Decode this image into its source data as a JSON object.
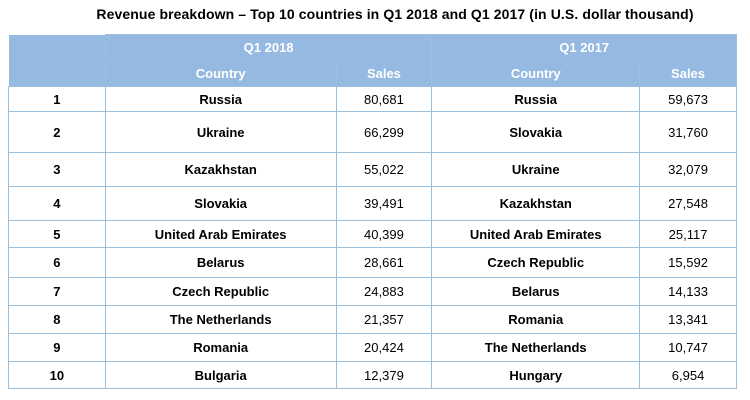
{
  "title": "Revenue breakdown – Top 10 countries in Q1 2018 and Q1 2017 (in U.S. dollar thousand)",
  "table": {
    "group_headers": [
      "Q1 2018",
      "Q1 2017"
    ],
    "sub_headers": [
      "Country",
      "Sales",
      "Country",
      "Sales"
    ],
    "rows": [
      {
        "rank": "1",
        "c2018": "Russia",
        "s2018": "80,681",
        "c2017": "Russia",
        "s2017": "59,673"
      },
      {
        "rank": "2",
        "c2018": "Ukraine",
        "s2018": "66,299",
        "c2017": "Slovakia",
        "s2017": "31,760"
      },
      {
        "rank": "3",
        "c2018": "Kazakhstan",
        "s2018": "55,022",
        "c2017": "Ukraine",
        "s2017": "32,079"
      },
      {
        "rank": "4",
        "c2018": "Slovakia",
        "s2018": "39,491",
        "c2017": "Kazakhstan",
        "s2017": "27,548"
      },
      {
        "rank": "5",
        "c2018": "United Arab Emirates",
        "s2018": "40,399",
        "c2017": "United Arab Emirates",
        "s2017": "25,117"
      },
      {
        "rank": "6",
        "c2018": "Belarus",
        "s2018": "28,661",
        "c2017": "Czech Republic",
        "s2017": "15,592"
      },
      {
        "rank": "7",
        "c2018": "Czech Republic",
        "s2018": "24,883",
        "c2017": "Belarus",
        "s2017": "14,133"
      },
      {
        "rank": "8",
        "c2018": "The Netherlands",
        "s2018": "21,357",
        "c2017": "Romania",
        "s2017": "13,341"
      },
      {
        "rank": "9",
        "c2018": "Romania",
        "s2018": "20,424",
        "c2017": "The Netherlands",
        "s2017": "10,747"
      },
      {
        "rank": "10",
        "c2018": "Bulgaria",
        "s2018": "12,379",
        "c2017": "Hungary",
        "s2017": "6,954"
      }
    ]
  },
  "colors": {
    "header_bg": "#95b9e1",
    "border": "#9cc0dc",
    "header_text": "#ffffff"
  }
}
